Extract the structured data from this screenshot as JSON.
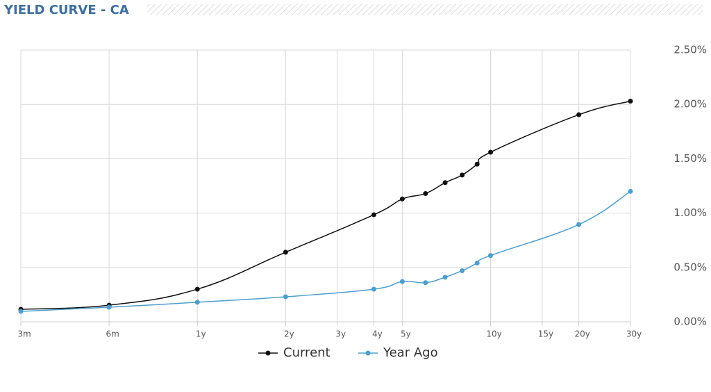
{
  "chart_data": {
    "type": "line",
    "title": "YIELD CURVE - CA",
    "x": [
      0.25,
      0.5,
      1,
      2,
      4,
      5,
      6,
      7,
      8,
      9,
      10,
      20,
      30
    ],
    "xscale": "log",
    "xlim": [
      0.25,
      30
    ],
    "xticks": [
      {
        "value": 0.25,
        "label": "3m"
      },
      {
        "value": 0.5,
        "label": "6m"
      },
      {
        "value": 1,
        "label": "1y"
      },
      {
        "value": 2,
        "label": "2y"
      },
      {
        "value": 3,
        "label": "3y"
      },
      {
        "value": 4,
        "label": "4y"
      },
      {
        "value": 5,
        "label": "5y"
      },
      {
        "value": 10,
        "label": "10y"
      },
      {
        "value": 15,
        "label": "15y"
      },
      {
        "value": 20,
        "label": "20y"
      },
      {
        "value": 30,
        "label": "30y"
      }
    ],
    "ylim": [
      0,
      2.5
    ],
    "yticks": [
      {
        "value": 0,
        "label": "0.00%"
      },
      {
        "value": 0.5,
        "label": "0.50%"
      },
      {
        "value": 1,
        "label": "1.00%"
      },
      {
        "value": 1.5,
        "label": "1.50%"
      },
      {
        "value": 2,
        "label": "2.00%"
      },
      {
        "value": 2.5,
        "label": "2.50%"
      }
    ],
    "grid": true,
    "legend": "bottom",
    "series": [
      {
        "name": "Current",
        "color": "#111111",
        "values": [
          0.115,
          0.153,
          0.3,
          0.64,
          0.985,
          1.13,
          1.18,
          1.28,
          1.35,
          1.45,
          1.56,
          1.905,
          2.03
        ]
      },
      {
        "name": "Year Ago",
        "color": "#4a9fd0",
        "values": [
          0.096,
          0.134,
          0.18,
          0.23,
          0.3,
          0.37,
          0.36,
          0.41,
          0.47,
          0.54,
          0.61,
          0.895,
          1.2
        ]
      }
    ]
  }
}
